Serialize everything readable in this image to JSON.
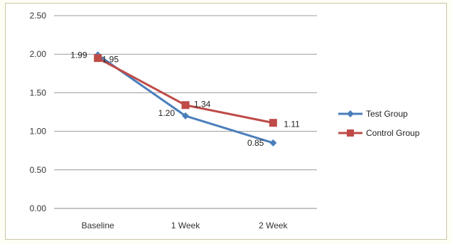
{
  "chart_data": {
    "type": "line",
    "categories": [
      "Baseline",
      "1 Week",
      "2 Week"
    ],
    "series": [
      {
        "name": "Test Group",
        "values": [
          1.99,
          1.2,
          0.85
        ],
        "color": "#4a7ebb",
        "marker": "diamond"
      },
      {
        "name": "Control Group",
        "values": [
          1.95,
          1.34,
          1.11
        ],
        "color": "#be4b48",
        "marker": "square"
      }
    ],
    "y_ticks": [
      "0.00",
      "0.50",
      "1.00",
      "1.50",
      "2.00",
      "2.50"
    ],
    "ylim": [
      0,
      2.5
    ],
    "data_labels": {
      "Test Group": [
        "1.99",
        "1.20",
        "0.85"
      ],
      "Control Group": [
        "1.95",
        "1.34",
        "1.11"
      ]
    },
    "grid": "horizontal",
    "legend_position": "right",
    "title": "",
    "xlabel": "",
    "ylabel": ""
  }
}
